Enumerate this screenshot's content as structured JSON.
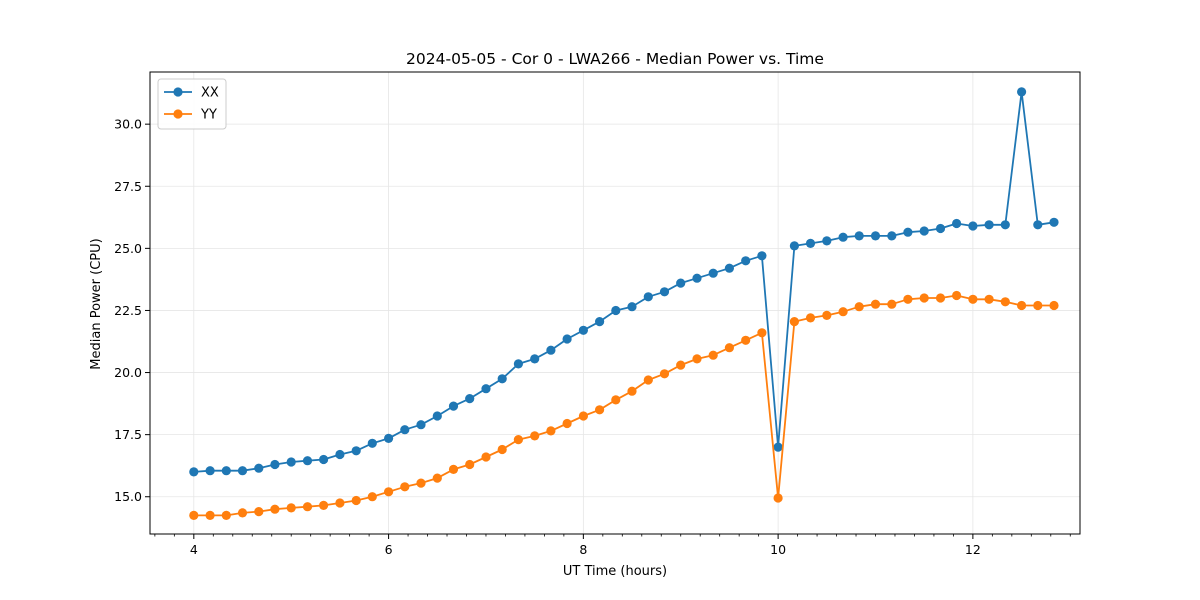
{
  "chart_data": {
    "type": "line",
    "title": "2024-05-05 - Cor 0 - LWA266 - Median Power vs. Time",
    "xlabel": "UT Time (hours)",
    "ylabel": "Median Power (CPU)",
    "xlim": [
      3.55,
      13.1
    ],
    "ylim": [
      13.5,
      32.1
    ],
    "xticks": [
      4,
      6,
      8,
      10,
      12
    ],
    "xtick_labels": [
      "4",
      "6",
      "8",
      "10",
      "12"
    ],
    "yticks": [
      15.0,
      17.5,
      20.0,
      22.5,
      25.0,
      27.5,
      30.0
    ],
    "ytick_labels": [
      "15.0",
      "17.5",
      "20.0",
      "22.5",
      "25.0",
      "27.5",
      "30.0"
    ],
    "grid": true,
    "legend_position": "top-left",
    "x": [
      4.0,
      4.167,
      4.333,
      4.5,
      4.667,
      4.833,
      5.0,
      5.167,
      5.333,
      5.5,
      5.667,
      5.833,
      6.0,
      6.167,
      6.333,
      6.5,
      6.667,
      6.833,
      7.0,
      7.167,
      7.333,
      7.5,
      7.667,
      7.833,
      8.0,
      8.167,
      8.333,
      8.5,
      8.667,
      8.833,
      9.0,
      9.167,
      9.333,
      9.5,
      9.667,
      9.833,
      10.0,
      10.167,
      10.333,
      10.5,
      10.667,
      10.833,
      11.0,
      11.167,
      11.333,
      11.5,
      11.667,
      11.833,
      12.0,
      12.167,
      12.333,
      12.5,
      12.667,
      12.833
    ],
    "series": [
      {
        "name": "XX",
        "color": "#1f77b4",
        "values": [
          16.0,
          16.05,
          16.05,
          16.05,
          16.15,
          16.3,
          16.4,
          16.45,
          16.5,
          16.7,
          16.85,
          17.15,
          17.35,
          17.7,
          17.9,
          18.25,
          18.65,
          18.95,
          19.35,
          19.75,
          20.35,
          20.55,
          20.9,
          21.35,
          21.7,
          22.05,
          22.5,
          22.65,
          23.05,
          23.25,
          23.6,
          23.8,
          24.0,
          24.2,
          24.5,
          24.7,
          17.0,
          25.1,
          25.2,
          25.3,
          25.45,
          25.5,
          25.5,
          25.5,
          25.65,
          25.7,
          25.8,
          26.0,
          25.9,
          25.95,
          25.95,
          31.3,
          25.95,
          26.05
        ]
      },
      {
        "name": "YY",
        "color": "#ff7f0e",
        "values": [
          14.25,
          14.25,
          14.25,
          14.35,
          14.4,
          14.5,
          14.55,
          14.6,
          14.65,
          14.75,
          14.85,
          15.0,
          15.2,
          15.4,
          15.55,
          15.75,
          16.1,
          16.3,
          16.6,
          16.9,
          17.3,
          17.45,
          17.65,
          17.95,
          18.25,
          18.5,
          18.9,
          19.25,
          19.7,
          19.95,
          20.3,
          20.55,
          20.7,
          21.0,
          21.3,
          21.6,
          14.95,
          22.05,
          22.2,
          22.3,
          22.45,
          22.65,
          22.75,
          22.75,
          22.95,
          23.0,
          23.0,
          23.1,
          22.95,
          22.95,
          22.85,
          22.7,
          22.7,
          22.7
        ]
      }
    ]
  }
}
